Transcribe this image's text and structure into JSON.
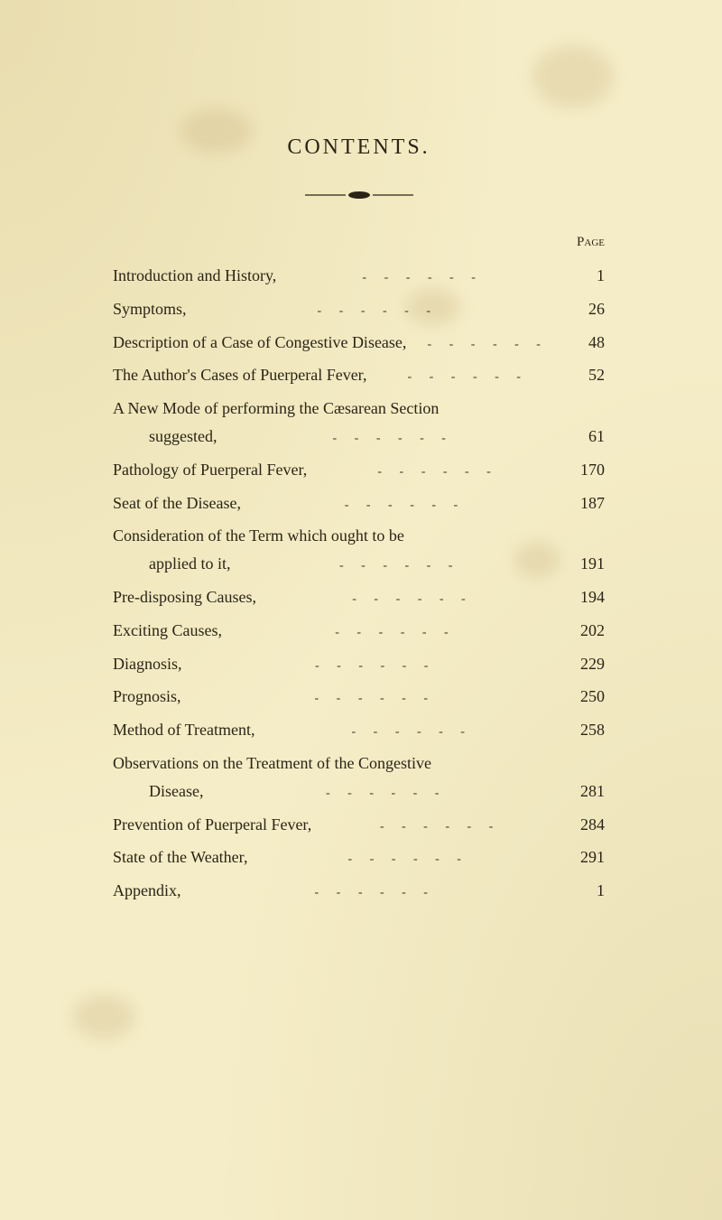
{
  "background_color": "#f5edc7",
  "text_color": "#2b2416",
  "title": "CONTENTS.",
  "page_header": "Page",
  "entries": [
    {
      "label": "Introduction and History,",
      "page": "1",
      "indent": false,
      "continuation": false
    },
    {
      "label": "Symptoms,",
      "page": "26",
      "indent": false,
      "continuation": false
    },
    {
      "label": "Description of a Case of Congestive Disease,",
      "page": "48",
      "indent": false,
      "continuation": false
    },
    {
      "label": "The Author's Cases of Puerperal Fever,",
      "page": "52",
      "indent": false,
      "continuation": false
    },
    {
      "label": "A New Mode of performing the Cæsarean Section",
      "page": "",
      "indent": false,
      "continuation": true
    },
    {
      "label": "suggested,",
      "page": "61",
      "indent": true,
      "continuation": false
    },
    {
      "label": "Pathology of Puerperal Fever,",
      "page": "170",
      "indent": false,
      "continuation": false
    },
    {
      "label": "Seat of the Disease,",
      "page": "187",
      "indent": false,
      "continuation": false
    },
    {
      "label": "Consideration of the Term which ought to be",
      "page": "",
      "indent": false,
      "continuation": true
    },
    {
      "label": "applied to it,",
      "page": "191",
      "indent": true,
      "continuation": false
    },
    {
      "label": "Pre-disposing Causes,",
      "page": "194",
      "indent": false,
      "continuation": false
    },
    {
      "label": "Exciting Causes,",
      "page": "202",
      "indent": false,
      "continuation": false
    },
    {
      "label": "Diagnosis,",
      "page": "229",
      "indent": false,
      "continuation": false
    },
    {
      "label": "Prognosis,",
      "page": "250",
      "indent": false,
      "continuation": false
    },
    {
      "label": "Method of Treatment,",
      "page": "258",
      "indent": false,
      "continuation": false
    },
    {
      "label": "Observations on the Treatment of the Congestive",
      "page": "",
      "indent": false,
      "continuation": true
    },
    {
      "label": "Disease,",
      "page": "281",
      "indent": true,
      "continuation": false
    },
    {
      "label": "Prevention of Puerperal Fever,",
      "page": "284",
      "indent": false,
      "continuation": false
    },
    {
      "label": "State of the Weather,",
      "page": "291",
      "indent": false,
      "continuation": false
    },
    {
      "label": "Appendix,",
      "page": "1",
      "indent": false,
      "continuation": false
    }
  ],
  "typography": {
    "title_fontsize": 24,
    "title_letterspacing": 3,
    "body_fontsize": 18,
    "font_family": "Georgia, Times New Roman, serif"
  }
}
